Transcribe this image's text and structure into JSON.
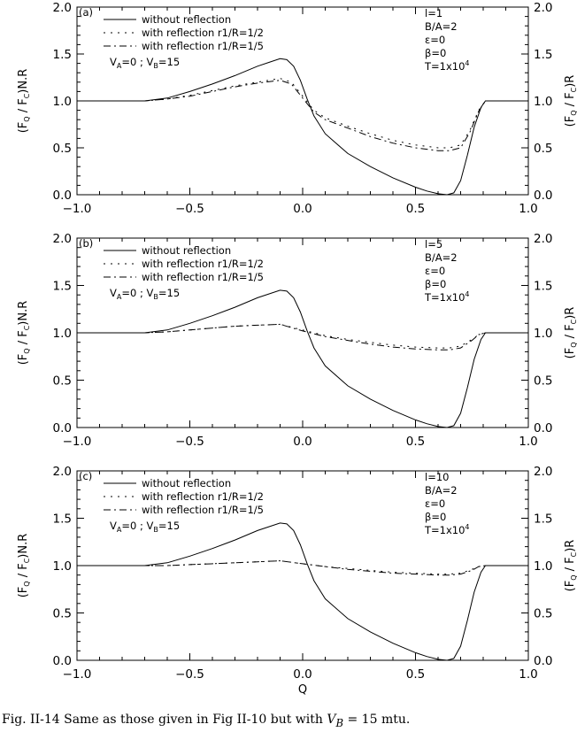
{
  "chart_data": [
    {
      "type": "line",
      "panel_label": "(a)",
      "xlabel": "",
      "ylabel_left": "(F_Q / F_C)N.R",
      "ylabel_right": "(F_Q / F_C)R",
      "xlim": [
        -1.0,
        1.0
      ],
      "ylim": [
        0.0,
        2.0
      ],
      "xticks": [
        "−1.0",
        "−0.5",
        "0.0",
        "0.5",
        "1.0"
      ],
      "yticks": [
        "0.0",
        "0.5",
        "1.0",
        "1.5",
        "2.0"
      ],
      "legend": [
        "without reflection",
        "with reflection r1/R=1/2",
        "with reflection r1/R=1/5"
      ],
      "annotation": "V_A=0 ; V_B=15",
      "params": [
        "l=1",
        "B/A=2",
        "ε=0",
        "β=0",
        "T=1x10^4"
      ],
      "series": [
        {
          "name": "without reflection",
          "style": "solid",
          "x": [
            -1.0,
            -0.7,
            -0.6,
            -0.5,
            -0.4,
            -0.3,
            -0.2,
            -0.15,
            -0.1,
            -0.07,
            -0.04,
            -0.01,
            0.02,
            0.05,
            0.1,
            0.2,
            0.3,
            0.4,
            0.5,
            0.55,
            0.6,
            0.64,
            0.67,
            0.7,
            0.73,
            0.76,
            0.79,
            0.81,
            0.83,
            0.86,
            0.9,
            1.0
          ],
          "y": [
            1.0,
            1.0,
            1.03,
            1.1,
            1.18,
            1.27,
            1.37,
            1.41,
            1.45,
            1.44,
            1.37,
            1.22,
            1.02,
            0.84,
            0.65,
            0.44,
            0.3,
            0.18,
            0.08,
            0.04,
            0.01,
            0.0,
            0.02,
            0.15,
            0.42,
            0.72,
            0.93,
            1.0,
            1.0,
            1.0,
            1.0,
            1.0
          ]
        },
        {
          "name": "with reflection r1/R=1/2",
          "style": "dotted",
          "x": [
            -1.0,
            -0.7,
            -0.6,
            -0.5,
            -0.4,
            -0.3,
            -0.2,
            -0.1,
            -0.05,
            0.0,
            0.05,
            0.1,
            0.2,
            0.3,
            0.4,
            0.5,
            0.6,
            0.65,
            0.7,
            0.74,
            0.78,
            0.81,
            0.83,
            0.86,
            0.9,
            1.0
          ],
          "y": [
            1.0,
            1.0,
            1.02,
            1.06,
            1.11,
            1.16,
            1.2,
            1.24,
            1.2,
            1.05,
            0.9,
            0.82,
            0.73,
            0.65,
            0.58,
            0.53,
            0.5,
            0.5,
            0.53,
            0.68,
            0.9,
            1.0,
            1.0,
            1.0,
            1.0,
            1.0
          ]
        },
        {
          "name": "with reflection r1/R=1/5",
          "style": "dash-dot",
          "x": [
            -1.0,
            -0.7,
            -0.6,
            -0.5,
            -0.4,
            -0.3,
            -0.2,
            -0.1,
            -0.05,
            0.0,
            0.05,
            0.1,
            0.2,
            0.3,
            0.4,
            0.5,
            0.6,
            0.65,
            0.7,
            0.74,
            0.78,
            0.81,
            0.83,
            0.86,
            0.9,
            1.0
          ],
          "y": [
            1.0,
            1.0,
            1.02,
            1.05,
            1.1,
            1.15,
            1.19,
            1.22,
            1.18,
            1.03,
            0.88,
            0.8,
            0.71,
            0.62,
            0.55,
            0.5,
            0.47,
            0.47,
            0.5,
            0.66,
            0.89,
            1.0,
            1.0,
            1.0,
            1.0,
            1.0
          ]
        }
      ]
    },
    {
      "type": "line",
      "panel_label": "(b)",
      "xlabel": "",
      "ylabel_left": "(F_Q / F_C)N.R",
      "ylabel_right": "(F_Q / F_C)R",
      "xlim": [
        -1.0,
        1.0
      ],
      "ylim": [
        0.0,
        2.0
      ],
      "xticks": [
        "−1.0",
        "−0.5",
        "0.0",
        "0.5",
        "1.0"
      ],
      "yticks": [
        "0.0",
        "0.5",
        "1.0",
        "1.5",
        "2.0"
      ],
      "legend": [
        "without reflection",
        "with reflection r1/R=1/2",
        "with reflection r1/R=1/5"
      ],
      "annotation": "V_A=0 ; V_B=15",
      "params": [
        "l=5",
        "B/A=2",
        "ε=0",
        "β=0",
        "T=1x10^4"
      ],
      "series": [
        {
          "name": "without reflection",
          "style": "solid",
          "x": [
            -1.0,
            -0.7,
            -0.6,
            -0.5,
            -0.4,
            -0.3,
            -0.2,
            -0.15,
            -0.1,
            -0.07,
            -0.04,
            -0.01,
            0.02,
            0.05,
            0.1,
            0.2,
            0.3,
            0.4,
            0.5,
            0.55,
            0.6,
            0.64,
            0.67,
            0.7,
            0.73,
            0.76,
            0.79,
            0.81,
            0.83,
            0.86,
            0.9,
            1.0
          ],
          "y": [
            1.0,
            1.0,
            1.03,
            1.1,
            1.18,
            1.27,
            1.37,
            1.41,
            1.45,
            1.44,
            1.37,
            1.22,
            1.02,
            0.84,
            0.65,
            0.44,
            0.3,
            0.18,
            0.08,
            0.04,
            0.01,
            0.0,
            0.02,
            0.15,
            0.42,
            0.72,
            0.93,
            1.0,
            1.0,
            1.0,
            1.0,
            1.0
          ]
        },
        {
          "name": "with reflection r1/R=1/2",
          "style": "dotted",
          "x": [
            -1.0,
            -0.7,
            -0.6,
            -0.5,
            -0.4,
            -0.3,
            -0.2,
            -0.1,
            0.0,
            0.1,
            0.2,
            0.3,
            0.4,
            0.5,
            0.6,
            0.65,
            0.7,
            0.75,
            0.78,
            0.81,
            0.85,
            0.9,
            1.0
          ],
          "y": [
            1.0,
            1.0,
            1.01,
            1.03,
            1.05,
            1.07,
            1.08,
            1.09,
            1.03,
            0.97,
            0.93,
            0.9,
            0.87,
            0.85,
            0.84,
            0.84,
            0.86,
            0.93,
            0.98,
            1.0,
            1.0,
            1.0,
            1.0
          ]
        },
        {
          "name": "with reflection r1/R=1/5",
          "style": "dash-dot",
          "x": [
            -1.0,
            -0.7,
            -0.6,
            -0.5,
            -0.4,
            -0.3,
            -0.2,
            -0.1,
            0.0,
            0.1,
            0.2,
            0.3,
            0.4,
            0.5,
            0.6,
            0.65,
            0.7,
            0.75,
            0.78,
            0.81,
            0.85,
            0.9,
            1.0
          ],
          "y": [
            1.0,
            1.0,
            1.01,
            1.03,
            1.05,
            1.07,
            1.08,
            1.09,
            1.02,
            0.96,
            0.92,
            0.88,
            0.85,
            0.83,
            0.82,
            0.82,
            0.84,
            0.92,
            0.98,
            1.0,
            1.0,
            1.0,
            1.0
          ]
        }
      ]
    },
    {
      "type": "line",
      "panel_label": "(c)",
      "xlabel": "Q",
      "ylabel_left": "(F_Q / F_C)N.R",
      "ylabel_right": "(F_Q / F_C)R",
      "xlim": [
        -1.0,
        1.0
      ],
      "ylim": [
        0.0,
        2.0
      ],
      "xticks": [
        "−1.0",
        "−0.5",
        "0.0",
        "0.5",
        "1.0"
      ],
      "yticks": [
        "0.0",
        "0.5",
        "1.0",
        "1.5",
        "2.0"
      ],
      "legend": [
        "without reflection",
        "with reflection r1/R=1/2",
        "with reflection r1/R=1/5"
      ],
      "annotation": "V_A=0 ; V_B=15",
      "params": [
        "l=10",
        "B/A=2",
        "ε=0",
        "β=0",
        "T=1x10^4"
      ],
      "series": [
        {
          "name": "without reflection",
          "style": "solid",
          "x": [
            -1.0,
            -0.7,
            -0.6,
            -0.5,
            -0.4,
            -0.3,
            -0.2,
            -0.15,
            -0.1,
            -0.07,
            -0.04,
            -0.01,
            0.02,
            0.05,
            0.1,
            0.2,
            0.3,
            0.4,
            0.5,
            0.55,
            0.6,
            0.64,
            0.67,
            0.7,
            0.73,
            0.76,
            0.79,
            0.81,
            0.83,
            0.86,
            0.9,
            1.0
          ],
          "y": [
            1.0,
            1.0,
            1.03,
            1.1,
            1.18,
            1.27,
            1.37,
            1.41,
            1.45,
            1.44,
            1.37,
            1.22,
            1.02,
            0.84,
            0.65,
            0.44,
            0.3,
            0.18,
            0.08,
            0.04,
            0.01,
            0.0,
            0.02,
            0.15,
            0.42,
            0.72,
            0.93,
            1.0,
            1.0,
            1.0,
            1.0,
            1.0
          ]
        },
        {
          "name": "with reflection r1/R=1/2",
          "style": "dotted",
          "x": [
            -1.0,
            -0.7,
            -0.6,
            -0.5,
            -0.4,
            -0.3,
            -0.2,
            -0.1,
            0.0,
            0.1,
            0.2,
            0.3,
            0.4,
            0.5,
            0.6,
            0.65,
            0.7,
            0.75,
            0.78,
            0.81,
            0.85,
            0.9,
            1.0
          ],
          "y": [
            1.0,
            1.0,
            1.0,
            1.01,
            1.02,
            1.03,
            1.04,
            1.05,
            1.02,
            0.99,
            0.97,
            0.95,
            0.93,
            0.92,
            0.91,
            0.91,
            0.92,
            0.96,
            0.99,
            1.0,
            1.0,
            1.0,
            1.0
          ]
        },
        {
          "name": "with reflection r1/R=1/5",
          "style": "dash-dot",
          "x": [
            -1.0,
            -0.7,
            -0.6,
            -0.5,
            -0.4,
            -0.3,
            -0.2,
            -0.1,
            0.0,
            0.1,
            0.2,
            0.3,
            0.4,
            0.5,
            0.6,
            0.65,
            0.7,
            0.75,
            0.78,
            0.81,
            0.85,
            0.9,
            1.0
          ],
          "y": [
            1.0,
            1.0,
            1.0,
            1.01,
            1.02,
            1.03,
            1.04,
            1.05,
            1.02,
            0.99,
            0.96,
            0.94,
            0.92,
            0.91,
            0.9,
            0.9,
            0.91,
            0.95,
            0.99,
            1.0,
            1.0,
            1.0,
            1.0
          ]
        }
      ]
    }
  ],
  "caption": {
    "prefix": "Fig. II-14 Same as those given in Fig II-10 but with ",
    "math": "V",
    "math_sub": "B",
    "suffix": " = 15 mtu."
  }
}
